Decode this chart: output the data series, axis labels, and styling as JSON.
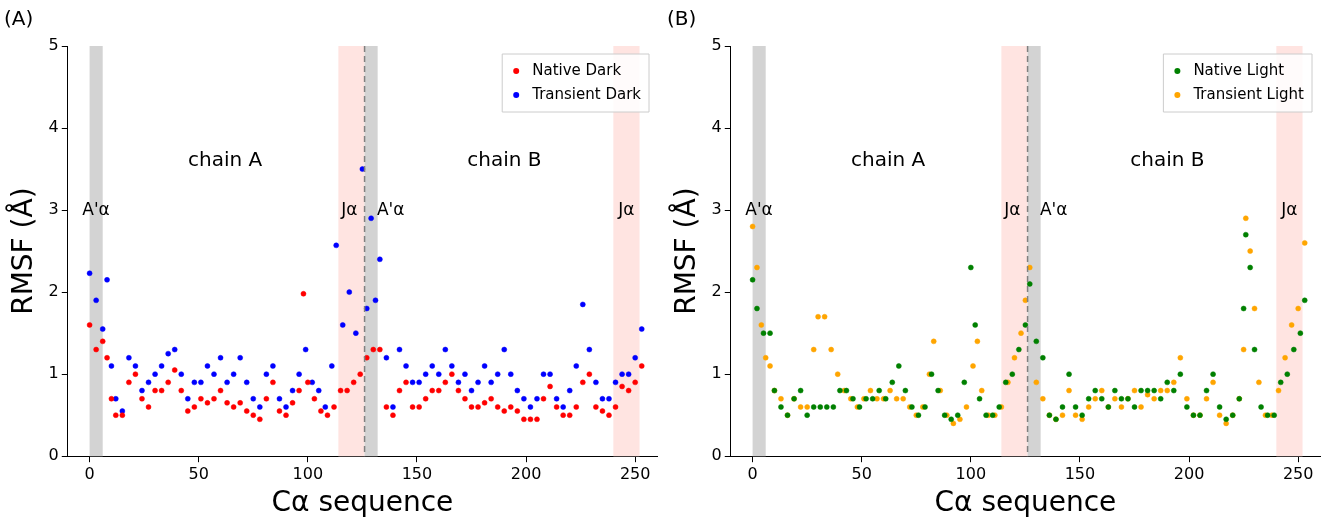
{
  "chart_data": [
    {
      "type": "scatter",
      "title": "(A)",
      "xlabel": "Cα sequence",
      "ylabel": "RMSF (Å)",
      "xlim": [
        -10,
        260
      ],
      "xticks": [
        0,
        50,
        100,
        150,
        200,
        250
      ],
      "ylim": [
        0,
        5
      ],
      "yticks": [
        0,
        1,
        2,
        3,
        4,
        5
      ],
      "grid": false,
      "legend": "top right",
      "marker": "circle",
      "bands": [
        {
          "axis": "x",
          "from": 0,
          "to": 6,
          "color": "#d3d3d3"
        },
        {
          "axis": "x",
          "from": 114,
          "to": 126,
          "color": "#ffe4e1"
        },
        {
          "axis": "x",
          "from": 126,
          "to": 132,
          "color": "#d3d3d3"
        },
        {
          "axis": "x",
          "from": 240,
          "to": 252,
          "color": "#ffe4e1"
        }
      ],
      "ref_lines": [
        {
          "axis": "x",
          "value": 126,
          "color": "#808080",
          "line_style": "dashed"
        }
      ],
      "annotations": [
        "chain A",
        "chain B",
        "A'α",
        "Jα",
        "A'α",
        "Jα"
      ],
      "series": [
        {
          "name": "Native Dark",
          "color": "#ff0000",
          "x": [
            0,
            3,
            6,
            8,
            10,
            12,
            15,
            18,
            21,
            24,
            27,
            30,
            33,
            36,
            39,
            42,
            45,
            48,
            51,
            54,
            57,
            60,
            63,
            66,
            69,
            72,
            75,
            78,
            81,
            84,
            87,
            90,
            93,
            96,
            98,
            100,
            103,
            106,
            109,
            112,
            115,
            118,
            121,
            124,
            127,
            130,
            133,
            136,
            139,
            142,
            145,
            148,
            151,
            154,
            157,
            160,
            163,
            166,
            169,
            172,
            175,
            178,
            181,
            184,
            187,
            190,
            193,
            196,
            199,
            202,
            205,
            208,
            211,
            214,
            217,
            220,
            223,
            226,
            229,
            232,
            235,
            238,
            241,
            244,
            247,
            250,
            253
          ],
          "values": [
            1.6,
            1.3,
            1.4,
            1.2,
            0.7,
            0.5,
            0.5,
            0.9,
            1.0,
            0.7,
            0.6,
            0.8,
            0.8,
            0.9,
            1.05,
            0.8,
            0.55,
            0.6,
            0.7,
            0.65,
            0.7,
            0.8,
            0.65,
            0.6,
            0.65,
            0.55,
            0.5,
            0.45,
            0.7,
            0.9,
            0.55,
            0.5,
            0.65,
            0.8,
            1.98,
            0.9,
            0.7,
            0.55,
            0.5,
            0.6,
            0.8,
            0.8,
            0.9,
            1.0,
            1.2,
            1.3,
            1.3,
            0.6,
            0.5,
            0.8,
            0.9,
            0.6,
            0.6,
            0.7,
            0.8,
            0.8,
            0.9,
            1.0,
            0.8,
            0.7,
            0.6,
            0.6,
            0.65,
            0.7,
            0.6,
            0.55,
            0.6,
            0.55,
            0.45,
            0.45,
            0.45,
            0.7,
            0.85,
            0.6,
            0.5,
            0.5,
            0.6,
            0.9,
            1.0,
            0.6,
            0.55,
            0.5,
            0.6,
            0.85,
            0.8,
            0.9,
            1.1
          ]
        },
        {
          "name": "Transient Dark",
          "color": "#0000ff",
          "x": [
            0,
            3,
            6,
            8,
            10,
            12,
            15,
            18,
            21,
            24,
            27,
            30,
            33,
            36,
            39,
            42,
            45,
            48,
            51,
            54,
            57,
            60,
            63,
            66,
            69,
            72,
            75,
            78,
            81,
            84,
            87,
            90,
            93,
            96,
            99,
            102,
            105,
            108,
            111,
            113,
            116,
            119,
            122,
            125,
            127,
            129,
            131,
            133,
            136,
            139,
            142,
            145,
            148,
            151,
            154,
            157,
            160,
            163,
            166,
            169,
            172,
            175,
            178,
            181,
            184,
            187,
            190,
            193,
            196,
            199,
            202,
            205,
            208,
            211,
            214,
            217,
            220,
            223,
            226,
            229,
            232,
            235,
            238,
            241,
            244,
            247,
            250,
            253
          ],
          "values": [
            2.23,
            1.9,
            1.55,
            2.15,
            1.1,
            0.7,
            0.55,
            1.2,
            1.1,
            0.8,
            0.9,
            1.0,
            1.1,
            1.25,
            1.3,
            1.0,
            0.7,
            0.9,
            0.9,
            1.1,
            1.0,
            1.2,
            0.9,
            1.0,
            1.2,
            0.9,
            0.7,
            0.6,
            1.0,
            1.1,
            0.7,
            0.6,
            0.8,
            1.0,
            1.3,
            0.9,
            0.8,
            0.6,
            1.1,
            2.57,
            1.6,
            2.0,
            1.5,
            3.5,
            1.8,
            2.9,
            1.9,
            2.4,
            1.2,
            0.6,
            1.3,
            1.1,
            0.9,
            0.9,
            1.0,
            1.1,
            1.0,
            1.3,
            1.1,
            0.9,
            1.0,
            0.8,
            0.9,
            1.1,
            0.9,
            1.0,
            1.3,
            1.0,
            0.8,
            0.7,
            0.6,
            0.7,
            1.0,
            1.0,
            0.7,
            0.6,
            0.8,
            1.1,
            1.85,
            1.3,
            0.9,
            0.7,
            0.7,
            0.9,
            1.0,
            1.0,
            1.2,
            1.55
          ]
        }
      ]
    },
    {
      "type": "scatter",
      "title": "(B)",
      "xlabel": "Cα sequence",
      "ylabel": "RMSF (Å)",
      "xlim": [
        -10,
        260
      ],
      "xticks": [
        0,
        50,
        100,
        150,
        200,
        250
      ],
      "ylim": [
        0,
        5
      ],
      "yticks": [
        0,
        1,
        2,
        3,
        4,
        5
      ],
      "grid": false,
      "legend": "top right",
      "marker": "circle",
      "bands": [
        {
          "axis": "x",
          "from": 0,
          "to": 6,
          "color": "#d3d3d3"
        },
        {
          "axis": "x",
          "from": 114,
          "to": 126,
          "color": "#ffe4e1"
        },
        {
          "axis": "x",
          "from": 126,
          "to": 132,
          "color": "#d3d3d3"
        },
        {
          "axis": "x",
          "from": 240,
          "to": 252,
          "color": "#ffe4e1"
        }
      ],
      "ref_lines": [
        {
          "axis": "x",
          "value": 126,
          "color": "#808080",
          "line_style": "dashed"
        }
      ],
      "annotations": [
        "chain A",
        "chain B",
        "A'α",
        "Jα",
        "A'α",
        "Jα"
      ],
      "series": [
        {
          "name": "Native Light",
          "color": "#008000",
          "x": [
            0,
            2,
            5,
            8,
            10,
            13,
            16,
            19,
            22,
            25,
            28,
            31,
            34,
            37,
            40,
            43,
            46,
            49,
            52,
            55,
            58,
            61,
            64,
            67,
            70,
            73,
            76,
            79,
            82,
            85,
            88,
            91,
            94,
            97,
            100,
            102,
            104,
            107,
            110,
            113,
            116,
            119,
            122,
            125,
            127,
            130,
            133,
            136,
            139,
            142,
            145,
            148,
            151,
            154,
            157,
            160,
            163,
            166,
            169,
            172,
            175,
            178,
            181,
            184,
            187,
            190,
            193,
            196,
            199,
            202,
            205,
            208,
            211,
            214,
            217,
            220,
            223,
            225,
            226,
            228,
            230,
            233,
            236,
            239,
            242,
            245,
            248,
            251,
            253
          ],
          "values": [
            2.15,
            1.8,
            1.5,
            1.5,
            0.8,
            0.6,
            0.5,
            0.7,
            0.8,
            0.5,
            0.6,
            0.6,
            0.6,
            0.6,
            0.8,
            0.8,
            0.7,
            0.6,
            0.7,
            0.7,
            0.8,
            0.7,
            0.9,
            1.1,
            0.8,
            0.6,
            0.5,
            0.6,
            1.0,
            0.8,
            0.5,
            0.45,
            0.5,
            0.9,
            2.3,
            1.6,
            0.7,
            0.5,
            0.5,
            0.6,
            0.9,
            1.0,
            1.3,
            1.6,
            2.1,
            1.4,
            1.2,
            0.5,
            0.45,
            0.6,
            1.0,
            0.6,
            0.5,
            0.7,
            0.8,
            0.7,
            0.6,
            0.8,
            0.7,
            0.7,
            0.6,
            0.8,
            0.8,
            0.8,
            0.7,
            0.9,
            0.8,
            1.0,
            0.6,
            0.5,
            0.5,
            0.8,
            1.0,
            0.6,
            0.45,
            0.5,
            0.7,
            1.8,
            2.7,
            2.3,
            1.3,
            0.6,
            0.5,
            0.5,
            0.9,
            1.0,
            1.3,
            1.5,
            1.9
          ]
        },
        {
          "name": "Transient Light",
          "color": "#ffa500",
          "x": [
            0,
            2,
            4,
            6,
            8,
            10,
            13,
            16,
            19,
            22,
            25,
            28,
            30,
            33,
            36,
            39,
            42,
            45,
            48,
            51,
            54,
            57,
            60,
            63,
            66,
            69,
            72,
            75,
            78,
            81,
            83,
            86,
            89,
            92,
            95,
            98,
            101,
            103,
            105,
            108,
            111,
            114,
            117,
            120,
            123,
            125,
            127,
            130,
            133,
            136,
            139,
            142,
            145,
            148,
            151,
            154,
            157,
            160,
            163,
            166,
            169,
            172,
            175,
            178,
            181,
            184,
            187,
            190,
            193,
            196,
            199,
            202,
            205,
            208,
            211,
            214,
            217,
            220,
            223,
            225,
            226,
            228,
            230,
            232,
            235,
            238,
            241,
            244,
            247,
            250,
            253
          ],
          "values": [
            2.8,
            2.3,
            1.6,
            1.2,
            1.1,
            0.8,
            0.7,
            0.5,
            0.7,
            0.6,
            0.6,
            1.3,
            1.7,
            1.7,
            1.3,
            1.0,
            0.8,
            0.7,
            0.6,
            0.7,
            0.8,
            0.7,
            0.7,
            0.8,
            0.7,
            0.7,
            0.6,
            0.5,
            0.6,
            1.0,
            1.4,
            0.8,
            0.5,
            0.4,
            0.45,
            0.6,
            1.1,
            1.4,
            0.8,
            0.5,
            0.5,
            0.6,
            0.9,
            1.2,
            1.5,
            1.9,
            2.3,
            0.9,
            0.7,
            0.5,
            0.45,
            0.5,
            0.8,
            0.5,
            0.45,
            0.6,
            0.7,
            0.8,
            0.6,
            0.7,
            0.6,
            0.7,
            0.8,
            0.6,
            0.75,
            0.7,
            0.8,
            0.8,
            0.9,
            1.2,
            0.7,
            0.5,
            0.5,
            0.7,
            0.9,
            0.5,
            0.4,
            0.5,
            0.7,
            1.3,
            2.9,
            2.5,
            1.8,
            0.9,
            0.5,
            0.5,
            0.8,
            1.2,
            1.6,
            1.8,
            2.6
          ]
        }
      ]
    }
  ]
}
